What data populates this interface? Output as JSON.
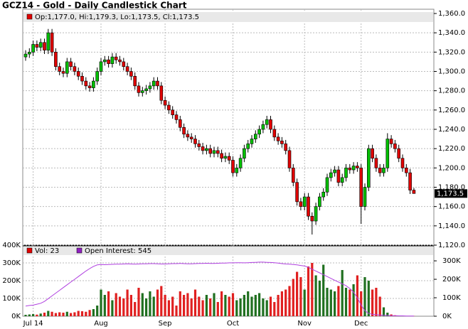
{
  "chart_data": {
    "type": "candlestick",
    "title": "GCZ14 - Gold - Daily Candlestick Chart",
    "legend_text": "Op:1,177.0, Hi:1,179.3, Lo:1,173.5, Cl:1,173.5",
    "last_price": {
      "value": 1173.5,
      "label": "1,173.5"
    },
    "up_color": "#00c000",
    "down_color": "#e00000",
    "grid": true,
    "categories": [
      null,
      null,
      "Jul 14",
      null,
      null,
      null,
      null,
      null,
      null,
      null,
      null,
      null,
      null,
      null,
      null,
      null,
      null,
      null,
      null,
      null,
      "Aug",
      null,
      null,
      null,
      null,
      null,
      null,
      null,
      null,
      null,
      null,
      null,
      null,
      null,
      null,
      null,
      null,
      "Sep",
      null,
      null,
      null,
      null,
      null,
      null,
      null,
      null,
      null,
      null,
      null,
      null,
      null,
      null,
      null,
      null,
      null,
      "Oct",
      null,
      null,
      null,
      null,
      null,
      null,
      null,
      null,
      null,
      null,
      null,
      null,
      null,
      null,
      null,
      null,
      null,
      null,
      "Nov",
      null,
      null,
      null,
      null,
      null,
      null,
      null,
      null,
      null,
      null,
      null,
      null,
      null,
      null,
      "Dec",
      null,
      null,
      null,
      null,
      null,
      null,
      null,
      null,
      null,
      null,
      null,
      null,
      null,
      null
    ],
    "open": [
      1315,
      1318,
      1320,
      1328,
      1325,
      1330,
      1322,
      1340,
      1320,
      1305,
      1300,
      1298,
      1310,
      1305,
      1300,
      1295,
      1290,
      1285,
      1283,
      1290,
      1300,
      1310,
      1312,
      1308,
      1315,
      1312,
      1310,
      1305,
      1300,
      1295,
      1285,
      1278,
      1280,
      1282,
      1285,
      1290,
      1285,
      1270,
      1265,
      1260,
      1255,
      1250,
      1242,
      1235,
      1232,
      1230,
      1225,
      1222,
      1218,
      1220,
      1215,
      1218,
      1215,
      1210,
      1212,
      1208,
      1195,
      1200,
      1210,
      1220,
      1225,
      1230,
      1235,
      1240,
      1245,
      1250,
      1240,
      1232,
      1228,
      1225,
      1218,
      1200,
      1185,
      1165,
      1160,
      1170,
      1150,
      1145,
      1160,
      1170,
      1175,
      1190,
      1195,
      1198,
      1185,
      1190,
      1200,
      1198,
      1202,
      1200,
      1160,
      1180,
      1220,
      1210,
      1200,
      1195,
      1200,
      1230,
      1225,
      1220,
      1210,
      1200,
      1195,
      1177
    ],
    "high": [
      1322,
      1324,
      1332,
      1332,
      1334,
      1334,
      1344,
      1344,
      1324,
      1309,
      1304,
      1314,
      1314,
      1309,
      1304,
      1299,
      1294,
      1289,
      1294,
      1304,
      1314,
      1316,
      1316,
      1319,
      1319,
      1316,
      1314,
      1309,
      1304,
      1299,
      1289,
      1284,
      1286,
      1289,
      1294,
      1294,
      1289,
      1274,
      1269,
      1264,
      1259,
      1254,
      1246,
      1239,
      1236,
      1234,
      1229,
      1226,
      1224,
      1224,
      1222,
      1222,
      1219,
      1216,
      1216,
      1212,
      1204,
      1214,
      1224,
      1229,
      1234,
      1239,
      1244,
      1249,
      1254,
      1254,
      1244,
      1236,
      1232,
      1229,
      1222,
      1204,
      1189,
      1169,
      1174,
      1174,
      1154,
      1164,
      1174,
      1179,
      1194,
      1199,
      1202,
      1202,
      1194,
      1204,
      1204,
      1206,
      1206,
      1204,
      1184,
      1224,
      1224,
      1214,
      1204,
      1204,
      1236,
      1234,
      1229,
      1224,
      1214,
      1204,
      1199,
      1179.3
    ],
    "low": [
      1311,
      1314,
      1316,
      1321,
      1321,
      1318,
      1318,
      1316,
      1301,
      1296,
      1294,
      1294,
      1301,
      1296,
      1291,
      1286,
      1281,
      1279,
      1279,
      1286,
      1296,
      1306,
      1304,
      1304,
      1308,
      1306,
      1301,
      1296,
      1291,
      1281,
      1274,
      1274,
      1276,
      1278,
      1281,
      1281,
      1266,
      1261,
      1256,
      1251,
      1246,
      1238,
      1231,
      1228,
      1226,
      1221,
      1218,
      1214,
      1214,
      1211,
      1211,
      1211,
      1206,
      1206,
      1204,
      1191,
      1191,
      1196,
      1206,
      1216,
      1221,
      1226,
      1231,
      1236,
      1241,
      1236,
      1228,
      1224,
      1221,
      1214,
      1196,
      1181,
      1161,
      1156,
      1156,
      1146,
      1131,
      1141,
      1156,
      1166,
      1171,
      1186,
      1191,
      1181,
      1181,
      1186,
      1194,
      1194,
      1196,
      1142,
      1156,
      1176,
      1206,
      1196,
      1191,
      1191,
      1196,
      1221,
      1216,
      1206,
      1196,
      1191,
      1173,
      1173.5
    ],
    "close": [
      1318,
      1320,
      1328,
      1325,
      1330,
      1322,
      1340,
      1320,
      1305,
      1300,
      1298,
      1310,
      1305,
      1300,
      1295,
      1290,
      1285,
      1283,
      1290,
      1300,
      1310,
      1312,
      1308,
      1315,
      1312,
      1310,
      1305,
      1300,
      1295,
      1285,
      1278,
      1280,
      1282,
      1285,
      1290,
      1285,
      1270,
      1265,
      1260,
      1255,
      1250,
      1242,
      1235,
      1232,
      1230,
      1225,
      1222,
      1218,
      1220,
      1215,
      1218,
      1215,
      1210,
      1212,
      1208,
      1195,
      1200,
      1210,
      1220,
      1225,
      1230,
      1235,
      1240,
      1245,
      1250,
      1240,
      1232,
      1228,
      1225,
      1218,
      1200,
      1185,
      1165,
      1160,
      1170,
      1150,
      1145,
      1160,
      1170,
      1175,
      1190,
      1195,
      1198,
      1185,
      1190,
      1200,
      1198,
      1202,
      1200,
      1160,
      1180,
      1220,
      1210,
      1200,
      1195,
      1200,
      1230,
      1225,
      1220,
      1210,
      1200,
      1195,
      1177,
      1173.5
    ],
    "ylim": [
      1120,
      1360
    ],
    "yticks": [
      {
        "value": 1120,
        "label": "1,120.0"
      },
      {
        "value": 1140,
        "label": "1,140.0"
      },
      {
        "value": 1160,
        "label": "1,160.0"
      },
      {
        "value": 1180,
        "label": "1,180.0"
      },
      {
        "value": 1200,
        "label": "1,200.0"
      },
      {
        "value": 1220,
        "label": "1,220.0"
      },
      {
        "value": 1240,
        "label": "1,240.0"
      },
      {
        "value": 1260,
        "label": "1,260.0"
      },
      {
        "value": 1280,
        "label": "1,280.0"
      },
      {
        "value": 1300,
        "label": "1,300.0"
      },
      {
        "value": 1320,
        "label": "1,320.0"
      },
      {
        "value": 1340,
        "label": "1,340.0"
      },
      {
        "value": 1360,
        "label": "1,360.0"
      }
    ],
    "volume": {
      "name": "Vol: 23",
      "values": [
        8000,
        10000,
        12000,
        9000,
        15000,
        20000,
        30000,
        25000,
        18000,
        22000,
        20000,
        25000,
        18000,
        22000,
        30000,
        28000,
        25000,
        35000,
        40000,
        60000,
        150000,
        120000,
        140000,
        90000,
        130000,
        110000,
        100000,
        150000,
        120000,
        80000,
        160000,
        130000,
        100000,
        140000,
        110000,
        150000,
        170000,
        120000,
        90000,
        110000,
        60000,
        140000,
        120000,
        130000,
        100000,
        150000,
        110000,
        90000,
        120000,
        100000,
        130000,
        80000,
        140000,
        120000,
        110000,
        130000,
        90000,
        100000,
        120000,
        140000,
        110000,
        120000,
        130000,
        100000,
        90000,
        110000,
        80000,
        120000,
        140000,
        150000,
        170000,
        210000,
        250000,
        220000,
        150000,
        280000,
        300000,
        230000,
        200000,
        290000,
        160000,
        150000,
        140000,
        170000,
        260000,
        160000,
        150000,
        180000,
        230000,
        140000,
        220000,
        200000,
        150000,
        160000,
        110000,
        50000,
        20000,
        10000,
        5000,
        3000,
        2000,
        2000,
        1000,
        1000
      ]
    },
    "open_interest": {
      "name": "Open Interest: 545",
      "color": "#b040e0",
      "axis": "y2",
      "values": [
        55000,
        58000,
        60000,
        65000,
        70000,
        80000,
        95000,
        110000,
        125000,
        140000,
        155000,
        170000,
        185000,
        200000,
        215000,
        230000,
        245000,
        258000,
        270000,
        278000,
        280000,
        279000,
        280000,
        281000,
        282000,
        282000,
        283000,
        284000,
        283000,
        282000,
        283000,
        284000,
        284000,
        285000,
        285000,
        284000,
        283000,
        283000,
        284000,
        285000,
        285000,
        286000,
        285000,
        284000,
        284000,
        285000,
        286000,
        286000,
        287000,
        286000,
        286000,
        287000,
        288000,
        288000,
        289000,
        289000,
        290000,
        290000,
        289000,
        290000,
        291000,
        292000,
        293000,
        293000,
        292000,
        291000,
        290000,
        288000,
        285000,
        283000,
        282000,
        280000,
        278000,
        275000,
        272000,
        265000,
        255000,
        245000,
        235000,
        225000,
        215000,
        205000,
        195000,
        185000,
        175000,
        165000,
        150000,
        130000,
        100000,
        60000,
        30000,
        15000,
        10000,
        8000,
        6000,
        5000,
        4000,
        3000,
        3000,
        2000,
        2000,
        1000,
        1000,
        1000
      ]
    },
    "vlim": [
      0,
      400000
    ],
    "vticks": [
      {
        "value": 0,
        "label": "0K"
      },
      {
        "value": 100000,
        "label": "100K"
      },
      {
        "value": 200000,
        "label": "200K"
      },
      {
        "value": 300000,
        "label": "300K"
      },
      {
        "value": 400000,
        "label": "400K"
      }
    ],
    "y2lim": [
      0,
      385000
    ],
    "y2ticks": [
      {
        "value": 0,
        "label": "0K"
      },
      {
        "value": 100000,
        "label": "100K"
      },
      {
        "value": 200000,
        "label": "200K"
      },
      {
        "value": 300000,
        "label": "300K"
      }
    ]
  }
}
